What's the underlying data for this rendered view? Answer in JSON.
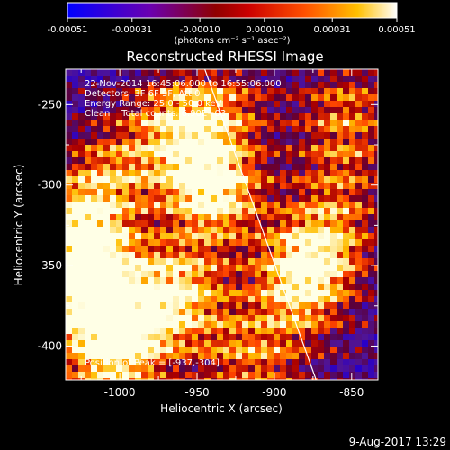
{
  "colorbar": {
    "tick_labels": [
      "-0.00051",
      "-0.00031",
      "-0.00010",
      "0.00010",
      "0.00031",
      "0.00051"
    ],
    "tick_values": [
      -0.00051,
      -0.00031,
      -0.0001,
      0.0001,
      0.00031,
      0.00051
    ],
    "range": [
      -0.00051,
      0.00051
    ],
    "unit_label": "(photons cm⁻² s⁻¹ asec⁻²)",
    "colors": [
      "#0000ff",
      "#7000a0",
      "#a00000",
      "#ff4000",
      "#ffc000",
      "#ffffff"
    ]
  },
  "chart_data": {
    "type": "heatmap",
    "title": "Reconstructed RHESSI Image",
    "xlabel": "Heliocentric X (arcsec)",
    "ylabel": "Heliocentric Y (arcsec)",
    "xlim": [
      -1035,
      -833
    ],
    "ylim": [
      -421,
      -228
    ],
    "x_ticks": [
      -1000,
      -950,
      -900,
      -850
    ],
    "x_tick_labels": [
      "-1000",
      "-950",
      "-900",
      "-850"
    ],
    "y_ticks": [
      -250,
      -300,
      -350,
      -400
    ],
    "y_tick_labels": [
      "-250",
      "-300",
      "-350",
      "-400"
    ],
    "grid": false,
    "info_lines": [
      "22-Nov-2014 16:45:06.000 to 16:55:06.000",
      "Detectors: 3F 6F 9F, Att 0",
      "Energy Range: 25.0 - 50.0 keV",
      "Clean    Total counts: 6.90E+03"
    ],
    "peak_label": "Position of Peak = [-937,-304]",
    "peak": [
      -937,
      -304
    ],
    "limb_line": [
      [
        -945,
        -228
      ],
      [
        -873,
        -421
      ]
    ],
    "limb_color": "#ffffff"
  },
  "footer": {
    "date": "9-Aug-2017 13:29"
  }
}
